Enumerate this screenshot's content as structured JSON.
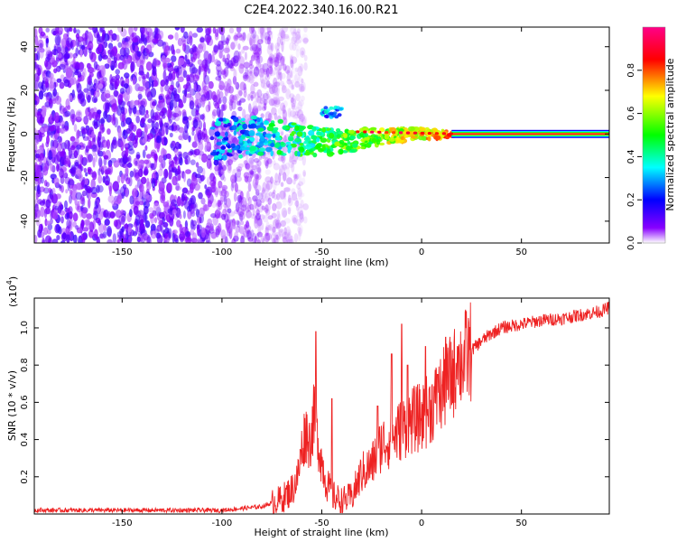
{
  "figure": {
    "title": "C2E4.2022.340.16.00.R21"
  },
  "chart_data": [
    {
      "type": "heatmap",
      "xlabel": "Height of straight line (km)",
      "ylabel": "Frequency (Hz)",
      "xlim": [
        -194,
        94
      ],
      "ylim": [
        -50,
        49
      ],
      "xticks": [
        -150,
        -100,
        -50,
        0,
        50
      ],
      "yticks": [
        -40,
        -20,
        0,
        20,
        40
      ],
      "grid": false,
      "colorbar": {
        "label": "Normalized spectral amplitude",
        "range": [
          0,
          1
        ],
        "ticks": [
          0.0,
          0.2,
          0.4,
          0.6,
          0.8
        ],
        "colormap": [
          "#ffffff",
          "#8800ff",
          "#0000ff",
          "#00ffff",
          "#00ff00",
          "#ffff00",
          "#ff0000",
          "#ff0088"
        ]
      },
      "features": {
        "noise_region_x": [
          -194,
          -70
        ],
        "carrier_line_x": [
          15,
          94
        ],
        "carrier_freq": 0,
        "secondary_blob": {
          "x": -45,
          "y": 10
        }
      }
    },
    {
      "type": "line",
      "xlabel": "Height of straight line (km)",
      "ylabel": "SNR (10 * v/v)",
      "scale_label": "(x10",
      "scale_exp": "4",
      "xlim": [
        -194,
        94
      ],
      "ylim": [
        0,
        1.16
      ],
      "xticks": [
        -150,
        -100,
        -50,
        0,
        50
      ],
      "yticks": [
        0.2,
        0.4,
        0.6,
        0.8,
        1.0
      ],
      "grid": false,
      "color": "#ee2222",
      "series": [
        {
          "name": "",
          "x": [
            -194,
            -150,
            -100,
            -80,
            -70,
            -65,
            -62,
            -60,
            -58,
            -56,
            -54,
            -52,
            -50,
            -48,
            -45,
            -40,
            -35,
            -30,
            -25,
            -20,
            -15,
            -10,
            -5,
            0,
            5,
            10,
            15,
            20,
            25,
            30,
            35,
            40,
            50,
            60,
            70,
            80,
            90,
            94
          ],
          "values": [
            0.02,
            0.02,
            0.02,
            0.04,
            0.08,
            0.13,
            0.2,
            0.35,
            0.45,
            0.38,
            0.52,
            0.4,
            0.28,
            0.18,
            0.1,
            0.07,
            0.09,
            0.22,
            0.26,
            0.38,
            0.4,
            0.46,
            0.5,
            0.52,
            0.58,
            0.65,
            0.74,
            0.82,
            0.88,
            0.93,
            0.97,
            1.0,
            1.02,
            1.04,
            1.05,
            1.07,
            1.09,
            1.11
          ]
        }
      ],
      "spikes": [
        {
          "x": -53,
          "y": 0.98
        },
        {
          "x": -45,
          "y": 0.62
        },
        {
          "x": -22,
          "y": 0.58
        },
        {
          "x": -15,
          "y": 0.86
        },
        {
          "x": -10,
          "y": 1.02
        },
        {
          "x": -7,
          "y": 0.8
        },
        {
          "x": 2,
          "y": 0.9
        },
        {
          "x": 8,
          "y": 0.75
        },
        {
          "x": 12,
          "y": 0.95
        },
        {
          "x": 18,
          "y": 0.9
        }
      ]
    }
  ]
}
